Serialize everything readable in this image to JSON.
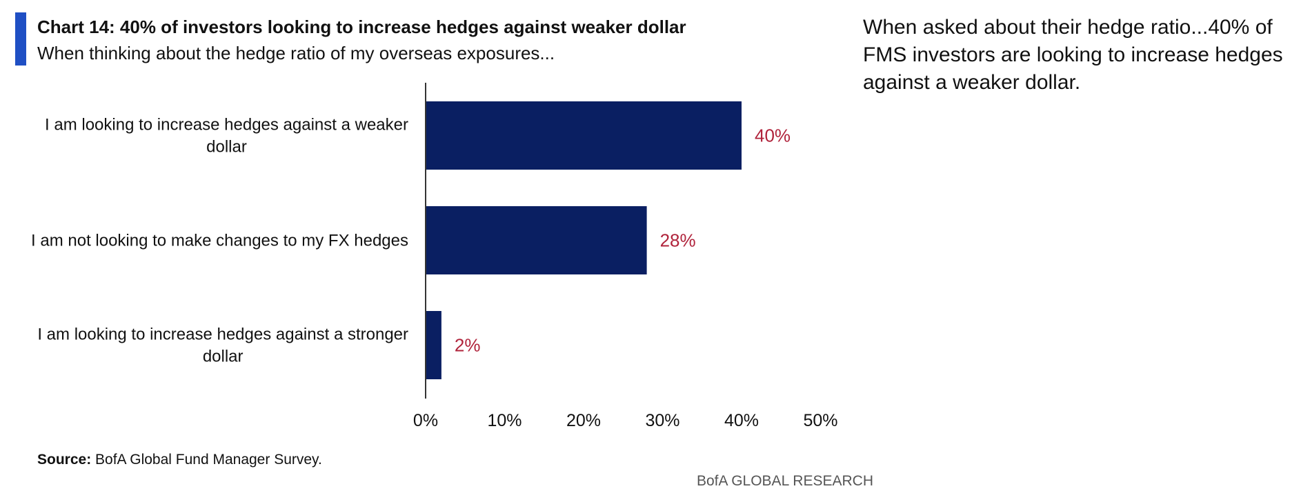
{
  "header": {
    "title": "Chart 14: 40% of investors looking to increase hedges against weaker dollar",
    "subtitle": "When thinking about the hedge ratio of my overseas exposures..."
  },
  "commentary": "When asked about their hedge ratio...40% of FMS investors are looking to increase hedges against a weaker dollar.",
  "footer": {
    "source_label": "Source:",
    "source_text": "BofA Global Fund Manager Survey.",
    "branding": "BofA GLOBAL RESEARCH"
  },
  "colors": {
    "bar": "#0a1f62",
    "data_label": "#b0233b",
    "accent": "#1f4fc4"
  },
  "chart_data": {
    "type": "bar",
    "orientation": "horizontal",
    "categories": [
      [
        "I am looking to increase hedges against a weaker",
        "dollar"
      ],
      [
        "I am not looking to make changes to my FX hedges"
      ],
      [
        "I am looking to increase hedges against a stronger",
        "dollar"
      ]
    ],
    "values": [
      40,
      28,
      2
    ],
    "data_labels": [
      "40%",
      "28%",
      "2%"
    ],
    "xlim": [
      0,
      50
    ],
    "xticks": [
      0,
      10,
      20,
      30,
      40,
      50
    ],
    "xtick_labels": [
      "0%",
      "10%",
      "20%",
      "30%",
      "40%",
      "50%"
    ],
    "grid": false,
    "legend": "none"
  }
}
